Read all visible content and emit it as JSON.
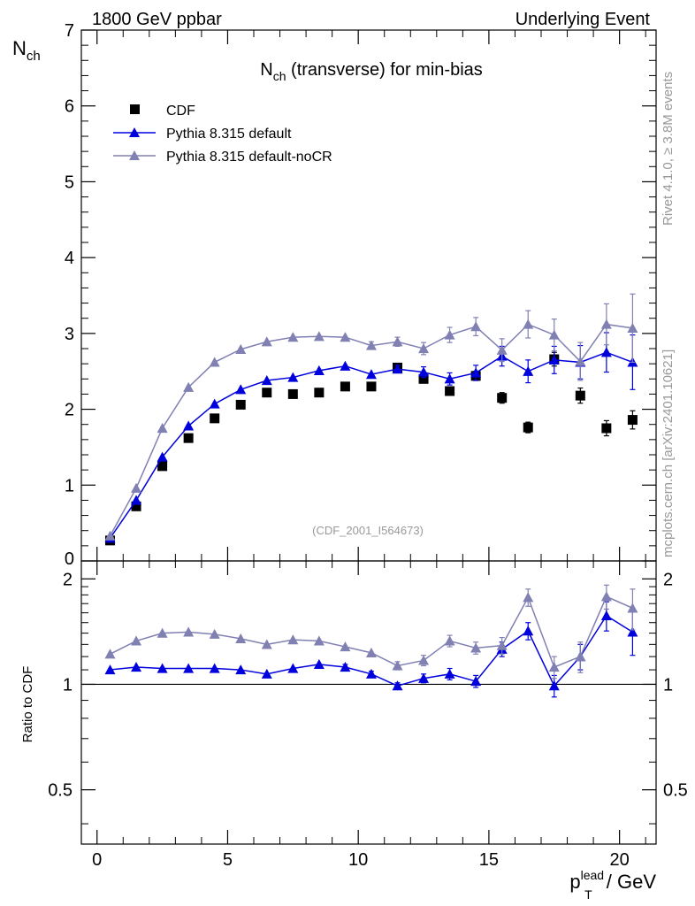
{
  "header": {
    "left": "1800 GeV ppbar",
    "right": "Underlying Event"
  },
  "side_labels": {
    "rivet": "Rivet 4.1.0, ≥ 3.8M events",
    "mcplots": "mcplots.cern.ch [arXiv:2401.10621]"
  },
  "chart_data": {
    "type": "scatter",
    "title": "N_ch (transverse) for min-bias",
    "title_main": "N",
    "title_sub": "ch",
    "title_rest": " (transverse) for min-bias",
    "analysis_id": "(CDF_2001_I564673)",
    "ylabel_main": "N",
    "ylabel_sub": "ch",
    "ratio_ylabel": "Ratio to CDF",
    "xlabel_main": "p",
    "xlabel_sub": "T",
    "xlabel_sup": "lead",
    "xlabel_rest": " / GeV",
    "xlim": [
      -0.6,
      21.4
    ],
    "ylim": [
      0,
      7
    ],
    "ratio_ylim": [
      0.35,
      2.25
    ],
    "xticks": [
      0,
      5,
      10,
      15,
      20
    ],
    "xtick_labels": [
      "0",
      "5",
      "10",
      "15",
      "20"
    ],
    "yticks": [
      0,
      1,
      2,
      3,
      4,
      5,
      6,
      7
    ],
    "ytick_labels": [
      "0",
      "1",
      "2",
      "3",
      "4",
      "5",
      "6",
      "7"
    ],
    "ratio_yticks": [
      0.5,
      1,
      2
    ],
    "ratio_ytick_labels": [
      "0.5",
      "1",
      "2"
    ],
    "x": [
      0.5,
      1.5,
      2.5,
      3.5,
      4.5,
      5.5,
      6.5,
      7.5,
      8.5,
      9.5,
      10.5,
      11.5,
      12.5,
      13.5,
      14.5,
      15.5,
      16.5,
      17.5,
      18.5,
      19.5,
      20.5
    ],
    "series": [
      {
        "name": "CDF",
        "color": "#000000",
        "marker": "square",
        "values": [
          0.27,
          0.72,
          1.25,
          1.62,
          1.88,
          2.06,
          2.22,
          2.2,
          2.22,
          2.3,
          2.3,
          2.55,
          2.4,
          2.24,
          2.44,
          2.15,
          1.76,
          2.66,
          2.18,
          1.75,
          1.86
        ],
        "errors": [
          0.01,
          0.02,
          0.02,
          0.02,
          0.02,
          0.02,
          0.02,
          0.02,
          0.02,
          0.03,
          0.04,
          0.05,
          0.05,
          0.05,
          0.06,
          0.07,
          0.07,
          0.09,
          0.1,
          0.1,
          0.12
        ]
      },
      {
        "name": "Pythia 8.315 default",
        "color": "#0000dd",
        "marker": "triangle",
        "values": [
          0.3,
          0.8,
          1.37,
          1.78,
          2.07,
          2.26,
          2.38,
          2.42,
          2.51,
          2.57,
          2.46,
          2.53,
          2.49,
          2.4,
          2.48,
          2.7,
          2.5,
          2.65,
          2.62,
          2.75,
          2.62
        ],
        "errors": [
          0.01,
          0.01,
          0.01,
          0.01,
          0.01,
          0.02,
          0.02,
          0.02,
          0.03,
          0.03,
          0.04,
          0.05,
          0.07,
          0.08,
          0.1,
          0.13,
          0.15,
          0.18,
          0.22,
          0.26,
          0.36
        ],
        "ratio": [
          1.1,
          1.12,
          1.11,
          1.11,
          1.11,
          1.1,
          1.07,
          1.11,
          1.14,
          1.12,
          1.07,
          0.99,
          1.04,
          1.07,
          1.02,
          1.26,
          1.42,
          0.99,
          1.2,
          1.57,
          1.41
        ],
        "ratio_errors": [
          0.01,
          0.01,
          0.01,
          0.01,
          0.01,
          0.01,
          0.01,
          0.01,
          0.01,
          0.02,
          0.02,
          0.02,
          0.03,
          0.04,
          0.04,
          0.06,
          0.08,
          0.07,
          0.1,
          0.15,
          0.2
        ]
      },
      {
        "name": "Pythia 8.315 default-noCR",
        "color": "#8080b3",
        "marker": "triangle",
        "values": [
          0.33,
          0.96,
          1.75,
          2.29,
          2.62,
          2.79,
          2.89,
          2.95,
          2.96,
          2.95,
          2.84,
          2.89,
          2.8,
          2.98,
          3.09,
          2.78,
          3.12,
          2.98,
          2.63,
          3.12,
          3.07
        ],
        "errors": [
          0.01,
          0.01,
          0.01,
          0.01,
          0.01,
          0.02,
          0.02,
          0.02,
          0.03,
          0.04,
          0.05,
          0.06,
          0.08,
          0.1,
          0.12,
          0.15,
          0.18,
          0.21,
          0.25,
          0.27,
          0.45
        ],
        "ratio": [
          1.22,
          1.33,
          1.4,
          1.41,
          1.39,
          1.35,
          1.3,
          1.34,
          1.33,
          1.28,
          1.23,
          1.13,
          1.17,
          1.33,
          1.27,
          1.29,
          1.77,
          1.12,
          1.2,
          1.78,
          1.65
        ],
        "ratio_errors": [
          0.01,
          0.01,
          0.01,
          0.01,
          0.01,
          0.01,
          0.01,
          0.01,
          0.02,
          0.02,
          0.02,
          0.03,
          0.04,
          0.05,
          0.05,
          0.07,
          0.1,
          0.08,
          0.12,
          0.14,
          0.22
        ]
      }
    ],
    "legend_position": "top-left"
  }
}
